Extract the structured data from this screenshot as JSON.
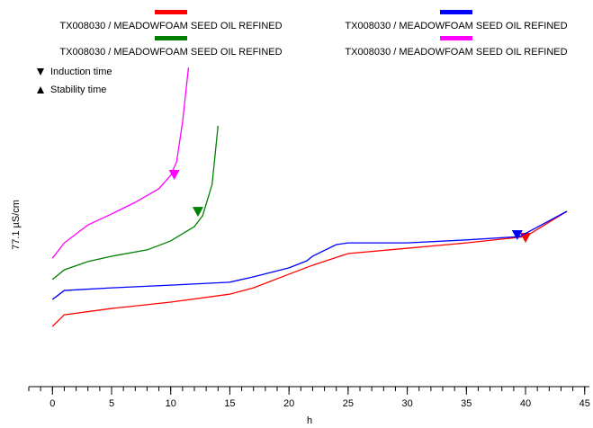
{
  "chart_data": {
    "type": "line",
    "x_label": "h",
    "y_label": "77.1 µS/cm",
    "xlim": [
      -2,
      45.4
    ],
    "ylim": [
      0,
      100
    ],
    "xticks": [
      0,
      5,
      10,
      15,
      20,
      25,
      30,
      35,
      40,
      45
    ],
    "xminorticks": [
      -2,
      -1,
      0,
      1,
      2,
      3,
      4,
      5,
      6,
      7,
      8,
      9,
      10,
      11,
      12,
      13,
      14,
      15,
      16,
      17,
      18,
      19,
      20,
      21,
      22,
      23,
      24,
      25,
      26,
      27,
      28,
      29,
      30,
      31,
      32,
      33,
      34,
      35,
      36,
      37,
      38,
      39,
      40,
      41,
      42,
      43,
      44,
      45
    ],
    "marker_legend": [
      "Induction time",
      "Stability time"
    ],
    "series": [
      {
        "name": "TX008030 / MEADOWFOAM SEED OIL REFINED",
        "color": "#ff0000",
        "x": [
          0,
          1,
          5,
          10,
          15,
          17,
          20,
          22,
          25,
          30,
          35,
          40,
          43.5
        ],
        "values": [
          18.1,
          21.6,
          23.5,
          25.4,
          27.8,
          29.7,
          33.8,
          36.5,
          40,
          41.6,
          43.2,
          45.1,
          52.7
        ],
        "induction_time": {
          "x": 40,
          "y": 44.6
        }
      },
      {
        "name": "TX008030 / MEADOWFOAM SEED OIL REFINED",
        "color": "#0000ff",
        "x": [
          0,
          1,
          5,
          10,
          15,
          17,
          20,
          21.5,
          22,
          24,
          25,
          30,
          35,
          39.5,
          43.5
        ],
        "values": [
          26.2,
          28.9,
          29.7,
          30.5,
          31.4,
          33,
          35.7,
          37.8,
          39.2,
          42.7,
          43.2,
          43.2,
          44.1,
          45.1,
          52.7
        ],
        "induction_time": {
          "x": 39.3,
          "y": 45.4
        }
      },
      {
        "name": "TX008030 / MEADOWFOAM SEED OIL REFINED",
        "color": "#008000",
        "x": [
          0,
          1,
          3,
          5,
          8,
          10,
          12,
          12.7,
          13.5,
          14
        ],
        "values": [
          32.2,
          35.1,
          37.6,
          39.2,
          41.1,
          43.8,
          48.1,
          51.4,
          60.8,
          78.4
        ],
        "induction_time": {
          "x": 12.3,
          "y": 52.4
        }
      },
      {
        "name": "TX008030 / MEADOWFOAM SEED OIL REFINED",
        "color": "#ff00ff",
        "x": [
          0,
          1,
          3,
          5,
          7,
          9,
          10,
          10.5,
          11,
          11.5
        ],
        "values": [
          38.6,
          43.2,
          48.6,
          51.9,
          55.4,
          59.5,
          63.5,
          67.6,
          79.5,
          95.9
        ],
        "induction_time": {
          "x": 10.3,
          "y": 63.5
        }
      }
    ]
  }
}
